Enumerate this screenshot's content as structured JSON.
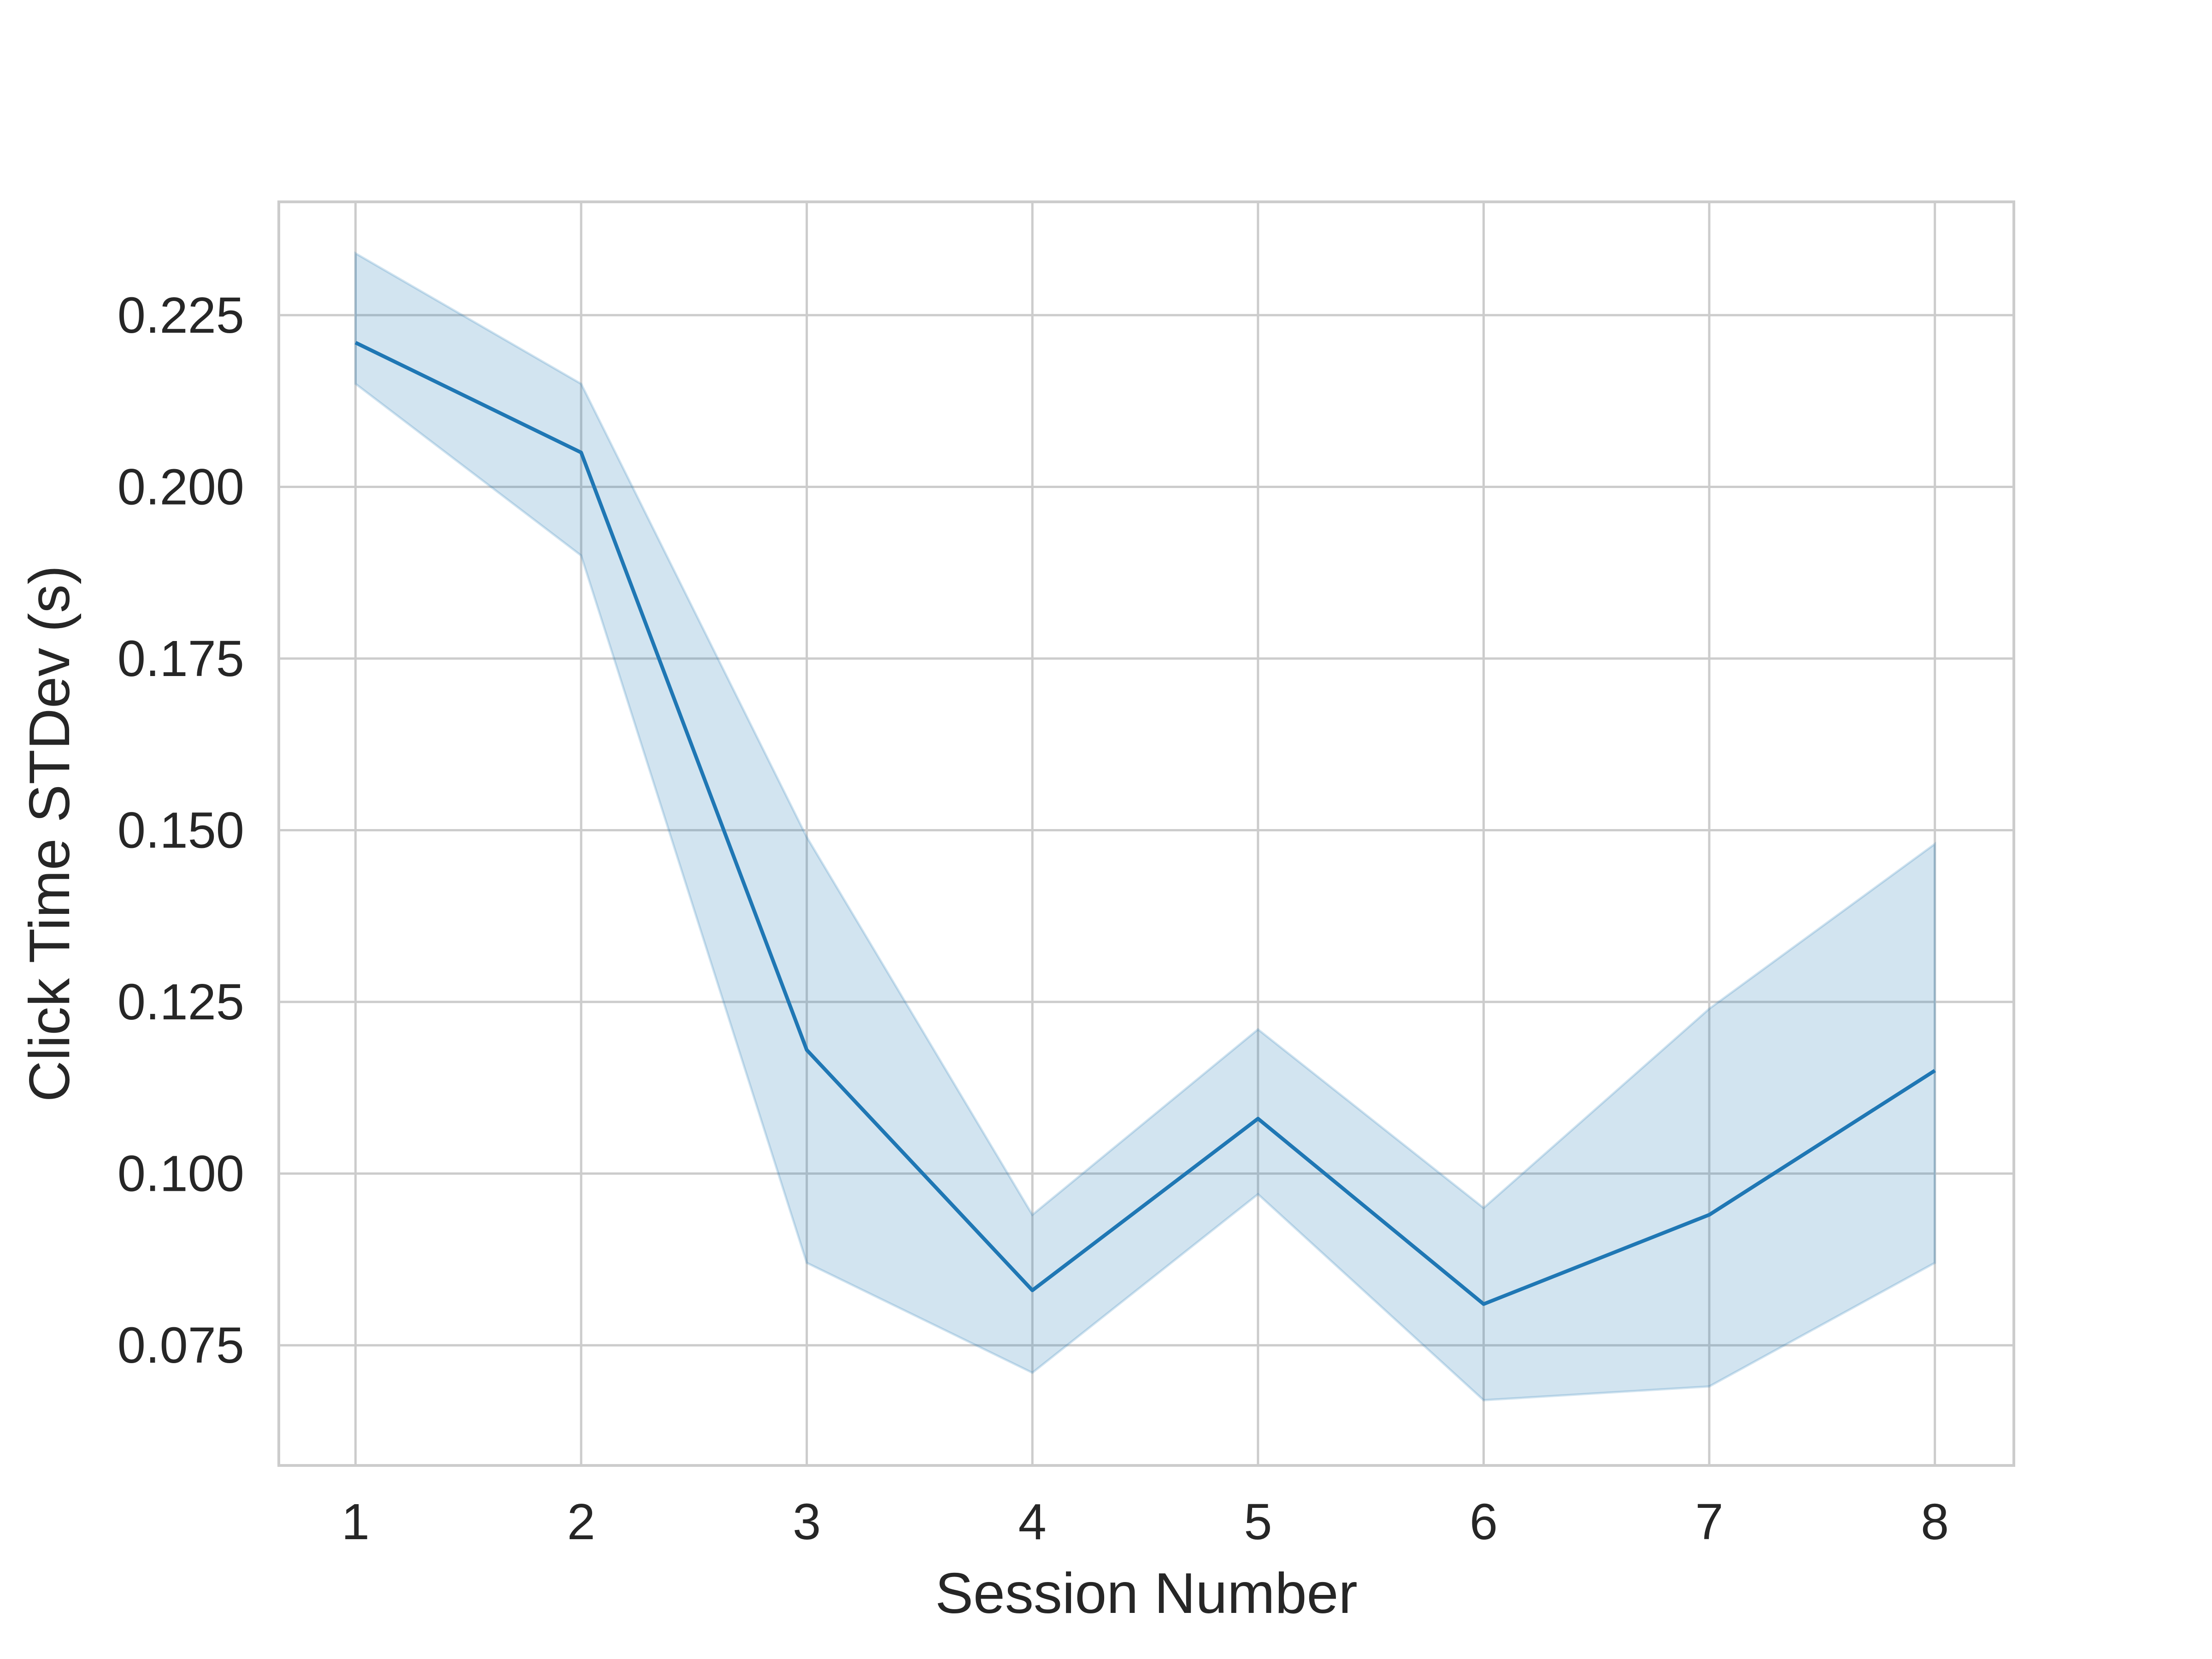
{
  "chart_data": {
    "type": "line",
    "title": "",
    "xlabel": "Session Number",
    "ylabel": "Click Time STDev (s)",
    "x": [
      1,
      2,
      3,
      4,
      5,
      6,
      7,
      8
    ],
    "x_ticks": [
      "1",
      "2",
      "3",
      "4",
      "5",
      "6",
      "7",
      "8"
    ],
    "y_ticks": [
      "0.075",
      "0.100",
      "0.125",
      "0.150",
      "0.175",
      "0.200",
      "0.225"
    ],
    "xlim": [
      0.66,
      8.35
    ],
    "ylim": [
      0.0575,
      0.2415
    ],
    "grid": true,
    "series": [
      {
        "values": [
          0.221,
          0.205,
          0.118,
          0.083,
          0.108,
          0.081,
          0.094,
          0.115
        ],
        "lower": [
          0.215,
          0.19,
          0.087,
          0.071,
          0.097,
          0.067,
          0.069,
          0.087
        ],
        "upper": [
          0.234,
          0.215,
          0.149,
          0.094,
          0.121,
          0.095,
          0.124,
          0.148
        ],
        "color": "#1f77b4",
        "band_color": "#1f77b4"
      }
    ]
  },
  "style": {
    "grid_color": "#cccccc",
    "spine_color": "#cccccc",
    "text_color": "#262626"
  }
}
